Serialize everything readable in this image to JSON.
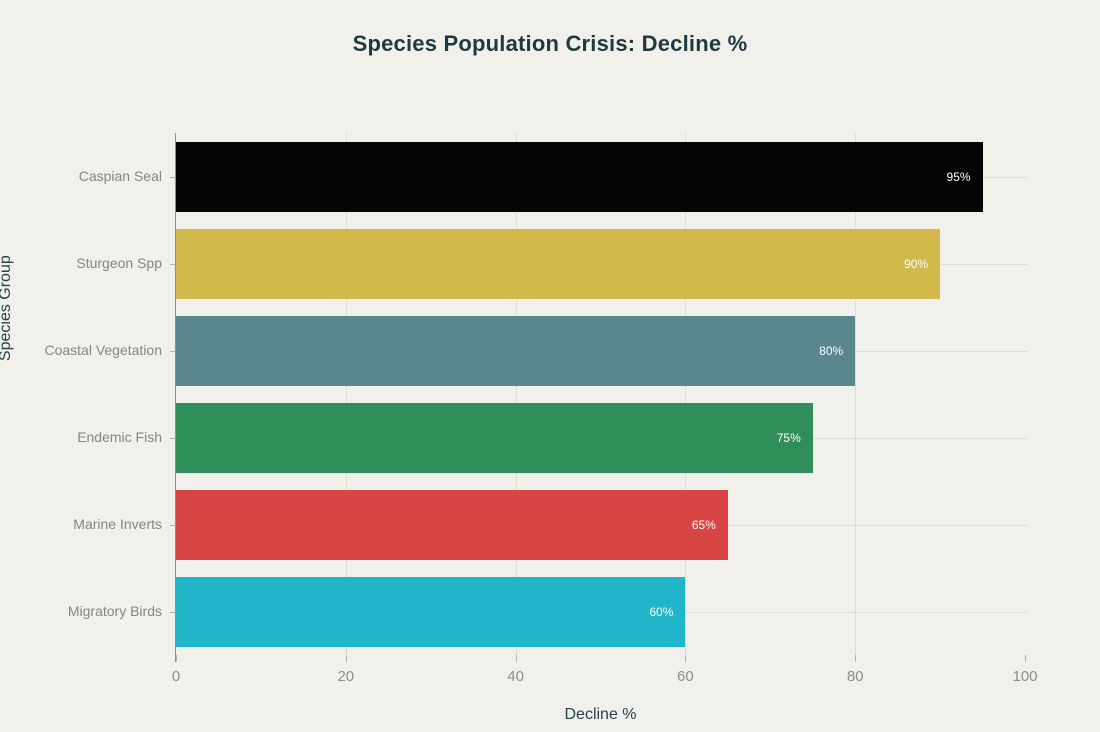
{
  "title": "Species Population Crisis: Decline %",
  "chart_data": {
    "type": "bar",
    "orientation": "horizontal",
    "title": "Species Population Crisis: Decline %",
    "xlabel": "Decline %",
    "ylabel": "Species Group",
    "categories": [
      "Caspian Seal",
      "Sturgeon Spp",
      "Coastal Vegetation",
      "Endemic Fish",
      "Marine Inverts",
      "Migratory Birds"
    ],
    "values": [
      95,
      90,
      80,
      75,
      65,
      60
    ],
    "value_labels": [
      "95%",
      "90%",
      "80%",
      "75%",
      "65%",
      "60%"
    ],
    "bar_colors": [
      "#050505",
      "#d3b94b",
      "#5a878e",
      "#2f8d58",
      "#d94545",
      "#20b5c9"
    ],
    "xlim": [
      0,
      100
    ],
    "xticks": [
      0,
      20,
      40,
      60,
      80,
      100
    ],
    "grid": true,
    "background_color": "#f1f0ea",
    "text_color": "#24424a",
    "gridline_color": "#dedcd3"
  }
}
